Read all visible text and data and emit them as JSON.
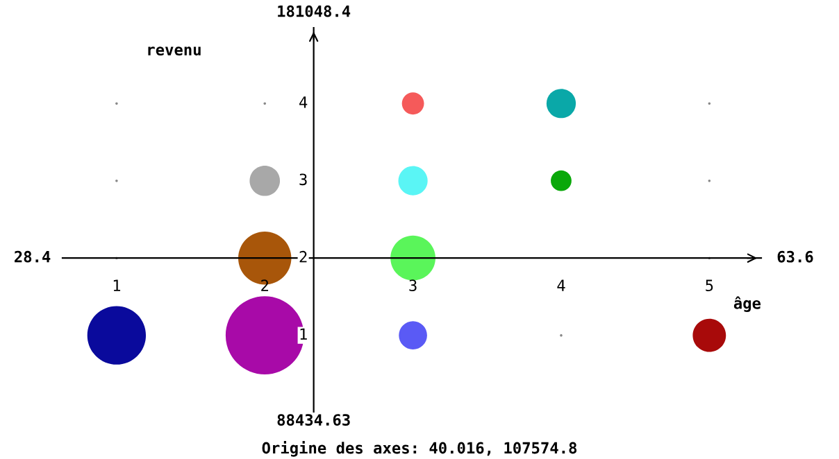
{
  "chart_data": {
    "type": "bubble",
    "xlabel": "âge",
    "ylabel": "revenu",
    "x": [
      1,
      2,
      3,
      5,
      2,
      3,
      2,
      3,
      4,
      3,
      4,
      1,
      1,
      2,
      5,
      5,
      4,
      1,
      5
    ],
    "values": [
      1,
      1,
      1,
      1,
      2,
      2,
      3,
      3,
      3,
      4,
      4,
      4,
      3,
      4,
      4,
      3,
      1,
      2,
      2
    ],
    "sizes": [
      0.56,
      1,
      0.13,
      0.18,
      0.46,
      0.33,
      0.15,
      0.14,
      0.07,
      0.08,
      0.14,
      0.001,
      0.001,
      0.001,
      0.001,
      0.001,
      0.001,
      0.001,
      0.001
    ],
    "colors": [
      "#0a0a9c",
      "#a80aa8",
      "#5a5af5",
      "#a80a0a",
      "#a8560a",
      "#5af55a",
      "#a8a8a8",
      "#5af5f5",
      "#0aa80a",
      "#f55a5a",
      "#0aa8a8",
      "#888888",
      "#888888",
      "#888888",
      "#888888",
      "#888888",
      "#888888",
      "#888888",
      "#888888"
    ],
    "xlim": [
      0.635,
      5.35
    ],
    "ylim": [
      0.01,
      4.98
    ],
    "xticks": [
      1,
      2,
      3,
      4,
      5
    ],
    "yticks": [
      1,
      2,
      3,
      4
    ],
    "grid": false,
    "annotations": [
      "28.4",
      "63.6",
      "181048.4",
      "88434.63",
      "Origine des axes: 40.016, 107574.8"
    ]
  }
}
